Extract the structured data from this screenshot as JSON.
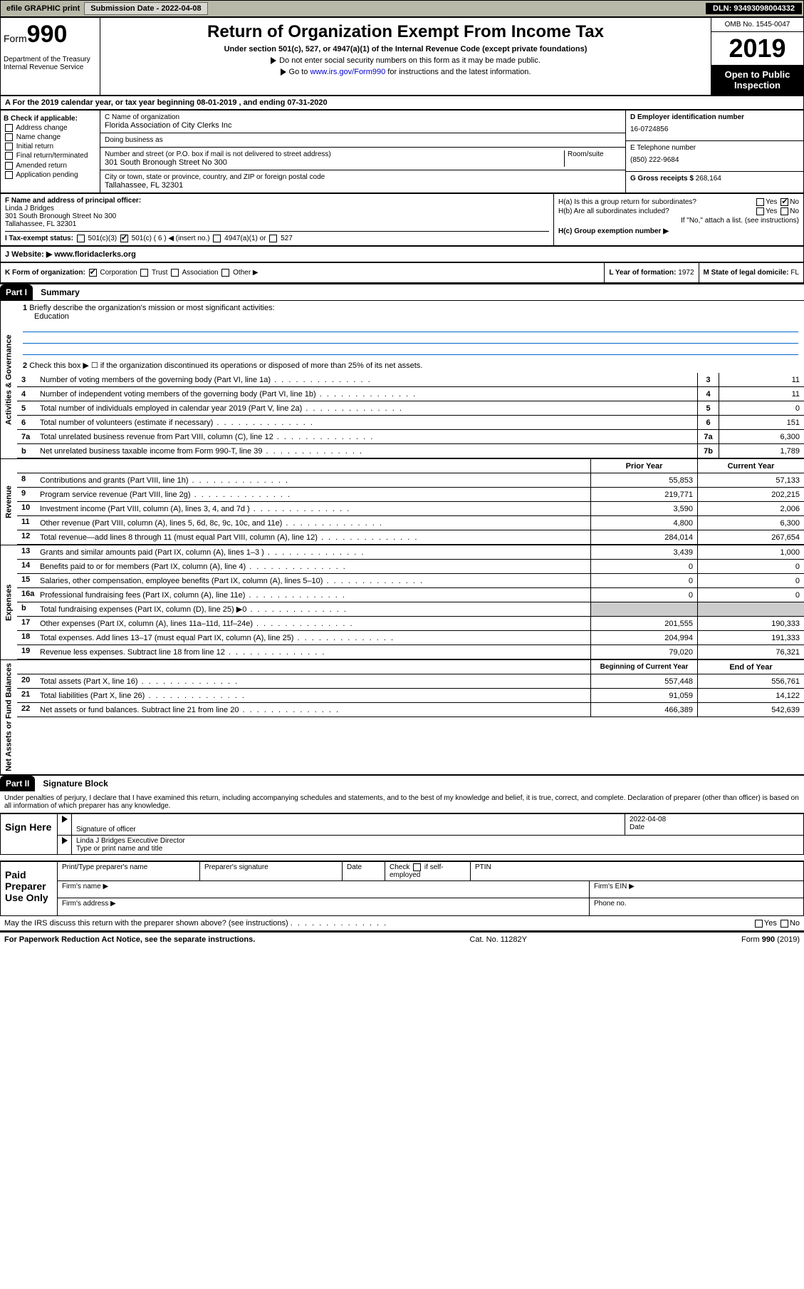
{
  "topbar": {
    "efile": "efile GRAPHIC print",
    "submission_label": "Submission Date - 2022-04-08",
    "dln": "DLN: 93493098004332"
  },
  "header": {
    "form_prefix": "Form",
    "form_number": "990",
    "dept": "Department of the Treasury\nInternal Revenue Service",
    "title": "Return of Organization Exempt From Income Tax",
    "sub": "Under section 501(c), 527, or 4947(a)(1) of the Internal Revenue Code (except private foundations)",
    "note1": "Do not enter social security numbers on this form as it may be made public.",
    "note2_pre": "Go to ",
    "note2_link": "www.irs.gov/Form990",
    "note2_post": " for instructions and the latest information.",
    "omb": "OMB No. 1545-0047",
    "year": "2019",
    "otp": "Open to Public Inspection"
  },
  "lineA": "A  For the 2019 calendar year, or tax year beginning 08-01-2019   , and ending 07-31-2020",
  "colB": {
    "title": "B Check if applicable:",
    "items": [
      "Address change",
      "Name change",
      "Initial return",
      "Final return/terminated",
      "Amended return",
      "Application pending"
    ]
  },
  "colC": {
    "name_lbl": "C Name of organization",
    "name": "Florida Association of City Clerks Inc",
    "dba_lbl": "Doing business as",
    "dba": "",
    "street_lbl": "Number and street (or P.O. box if mail is not delivered to street address)",
    "room_lbl": "Room/suite",
    "street": "301 South Bronough Street No 300",
    "city_lbl": "City or town, state or province, country, and ZIP or foreign postal code",
    "city": "Tallahassee, FL  32301"
  },
  "colD": {
    "ein_lbl": "D Employer identification number",
    "ein": "16-0724856",
    "tel_lbl": "E Telephone number",
    "tel": "(850) 222-9684",
    "gross_lbl": "G Gross receipts $",
    "gross": "268,164"
  },
  "colF": {
    "lbl": "F Name and address of principal officer:",
    "name": "Linda J Bridges",
    "addr1": "301 South Bronough Street No 300",
    "addr2": "Tallahassee, FL  32301"
  },
  "colH": {
    "ha": "H(a)  Is this a group return for subordinates?",
    "hb": "H(b) Are all subordinates included?",
    "hb_note": "If \"No,\" attach a list. (see instructions)",
    "hc": "H(c)  Group exemption number ▶"
  },
  "lineI": {
    "lbl": "I   Tax-exempt status:",
    "opts": [
      "501(c)(3)",
      "501(c) ( 6 ) ◀ (insert no.)",
      "4947(a)(1) or",
      "527"
    ]
  },
  "lineJ": {
    "lbl": "J   Website: ▶",
    "val": "  www.floridaclerks.org"
  },
  "lineK": {
    "lbl": "K Form of organization:",
    "opts": [
      "Corporation",
      "Trust",
      "Association",
      "Other ▶"
    ],
    "l_lbl": "L Year of formation:",
    "l_val": "1972",
    "m_lbl": "M State of legal domicile:",
    "m_val": "FL"
  },
  "part1": {
    "hdr": "Part I",
    "title": "Summary"
  },
  "gov": {
    "label": "Activities & Governance",
    "q1": "Briefly describe the organization's mission or most significant activities:",
    "q1_val": "Education",
    "q2": "Check this box ▶ ☐ if the organization discontinued its operations or disposed of more than 25% of its net assets.",
    "rows": [
      {
        "n": "3",
        "d": "Number of voting members of the governing body (Part VI, line 1a)",
        "bn": "3",
        "v": "11"
      },
      {
        "n": "4",
        "d": "Number of independent voting members of the governing body (Part VI, line 1b)",
        "bn": "4",
        "v": "11"
      },
      {
        "n": "5",
        "d": "Total number of individuals employed in calendar year 2019 (Part V, line 2a)",
        "bn": "5",
        "v": "0"
      },
      {
        "n": "6",
        "d": "Total number of volunteers (estimate if necessary)",
        "bn": "6",
        "v": "151"
      },
      {
        "n": "7a",
        "d": "Total unrelated business revenue from Part VIII, column (C), line 12",
        "bn": "7a",
        "v": "6,300"
      },
      {
        "n": "b",
        "d": "Net unrelated business taxable income from Form 990-T, line 39",
        "bn": "7b",
        "v": "1,789"
      }
    ]
  },
  "cols": {
    "py": "Prior Year",
    "cy": "Current Year"
  },
  "rev": {
    "label": "Revenue",
    "rows": [
      {
        "n": "8",
        "d": "Contributions and grants (Part VIII, line 1h)",
        "py": "55,853",
        "cy": "57,133"
      },
      {
        "n": "9",
        "d": "Program service revenue (Part VIII, line 2g)",
        "py": "219,771",
        "cy": "202,215"
      },
      {
        "n": "10",
        "d": "Investment income (Part VIII, column (A), lines 3, 4, and 7d )",
        "py": "3,590",
        "cy": "2,006"
      },
      {
        "n": "11",
        "d": "Other revenue (Part VIII, column (A), lines 5, 6d, 8c, 9c, 10c, and 11e)",
        "py": "4,800",
        "cy": "6,300"
      },
      {
        "n": "12",
        "d": "Total revenue—add lines 8 through 11 (must equal Part VIII, column (A), line 12)",
        "py": "284,014",
        "cy": "267,654"
      }
    ]
  },
  "exp": {
    "label": "Expenses",
    "rows": [
      {
        "n": "13",
        "d": "Grants and similar amounts paid (Part IX, column (A), lines 1–3 )",
        "py": "3,439",
        "cy": "1,000"
      },
      {
        "n": "14",
        "d": "Benefits paid to or for members (Part IX, column (A), line 4)",
        "py": "0",
        "cy": "0"
      },
      {
        "n": "15",
        "d": "Salaries, other compensation, employee benefits (Part IX, column (A), lines 5–10)",
        "py": "0",
        "cy": "0"
      },
      {
        "n": "16a",
        "d": "Professional fundraising fees (Part IX, column (A), line 11e)",
        "py": "0",
        "cy": "0"
      },
      {
        "n": "b",
        "d": "Total fundraising expenses (Part IX, column (D), line 25) ▶0",
        "py": "",
        "cy": "",
        "shade": true
      },
      {
        "n": "17",
        "d": "Other expenses (Part IX, column (A), lines 11a–11d, 11f–24e)",
        "py": "201,555",
        "cy": "190,333"
      },
      {
        "n": "18",
        "d": "Total expenses. Add lines 13–17 (must equal Part IX, column (A), line 25)",
        "py": "204,994",
        "cy": "191,333"
      },
      {
        "n": "19",
        "d": "Revenue less expenses. Subtract line 18 from line 12",
        "py": "79,020",
        "cy": "76,321"
      }
    ]
  },
  "cols2": {
    "py": "Beginning of Current Year",
    "cy": "End of Year"
  },
  "net": {
    "label": "Net Assets or Fund Balances",
    "rows": [
      {
        "n": "20",
        "d": "Total assets (Part X, line 16)",
        "py": "557,448",
        "cy": "556,761"
      },
      {
        "n": "21",
        "d": "Total liabilities (Part X, line 26)",
        "py": "91,059",
        "cy": "14,122"
      },
      {
        "n": "22",
        "d": "Net assets or fund balances. Subtract line 21 from line 20",
        "py": "466,389",
        "cy": "542,639"
      }
    ]
  },
  "part2": {
    "hdr": "Part II",
    "title": "Signature Block",
    "decl": "Under penalties of perjury, I declare that I have examined this return, including accompanying schedules and statements, and to the best of my knowledge and belief, it is true, correct, and complete. Declaration of preparer (other than officer) is based on all information of which preparer has any knowledge."
  },
  "sign": {
    "here": "Sign Here",
    "sig_lbl": "Signature of officer",
    "date_lbl": "Date",
    "date": "2022-04-08",
    "officer": "Linda J Bridges  Executive Director",
    "type_lbl": "Type or print name and title"
  },
  "paid": {
    "here": "Paid Preparer Use Only",
    "h1": "Print/Type preparer's name",
    "h2": "Preparer's signature",
    "h3": "Date",
    "h4_pre": "Check",
    "h4_post": "if self-employed",
    "h5": "PTIN",
    "firm_name": "Firm's name   ▶",
    "firm_ein": "Firm's EIN ▶",
    "firm_addr": "Firm's address ▶",
    "phone": "Phone no."
  },
  "discuss": "May the IRS discuss this return with the preparer shown above? (see instructions)",
  "footer": {
    "left": "For Paperwork Reduction Act Notice, see the separate instructions.",
    "mid": "Cat. No. 11282Y",
    "right": "Form 990 (2019)"
  }
}
